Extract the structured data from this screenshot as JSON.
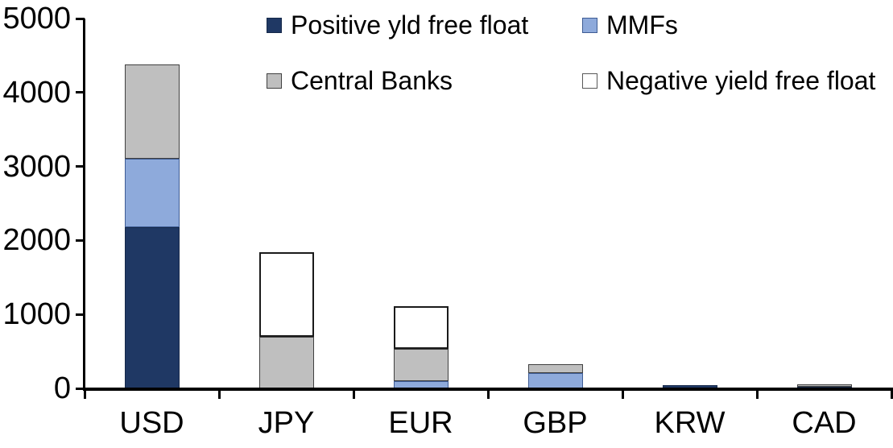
{
  "chart_data": {
    "type": "bar",
    "stacked": true,
    "title": "",
    "xlabel": "",
    "ylabel": "",
    "categories": [
      "USD",
      "JPY",
      "EUR",
      "GBP",
      "KRW",
      "CAD"
    ],
    "series": [
      {
        "name": "Positive yld free float",
        "color": "#1F3864",
        "border_color": "#16294a",
        "border_width": 1,
        "values": [
          2180,
          0,
          0,
          0,
          45,
          25
        ]
      },
      {
        "name": "MMFs",
        "color": "#8EAADB",
        "border_color": "#3e5c94",
        "border_width": 1.5,
        "values": [
          920,
          0,
          95,
          210,
          0,
          0
        ]
      },
      {
        "name": "Central Banks",
        "color": "#BFBFBF",
        "border_color": "#404040",
        "border_width": 1.5,
        "values": [
          1280,
          700,
          440,
          120,
          0,
          35
        ]
      },
      {
        "name": "Negative yield free float",
        "color": "#FFFFFF",
        "border_color": "#1a1a1a",
        "border_width": 2,
        "values": [
          0,
          1140,
          575,
          0,
          0,
          0
        ]
      }
    ],
    "totals": [
      4380,
      1840,
      1110,
      330,
      45,
      60
    ],
    "ylim": [
      0,
      5000
    ],
    "yticks": [
      0,
      1000,
      2000,
      3000,
      4000,
      5000
    ],
    "ytick_labels": [
      "0",
      "1000",
      "2000",
      "3000",
      "4000",
      "5000"
    ],
    "grid": false,
    "legend_position": "top",
    "legend_rows": [
      [
        0,
        1
      ],
      [
        2,
        3
      ]
    ],
    "axis_color": "#000000",
    "background_color": "#FFFFFF"
  }
}
